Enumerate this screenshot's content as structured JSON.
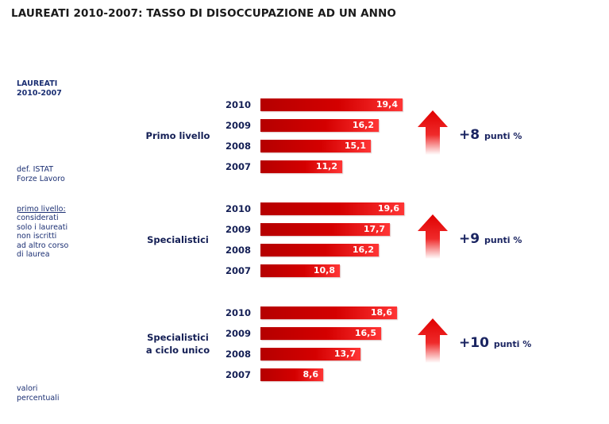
{
  "page": {
    "title": "LAUREATI 2010-2007: TASSO DI DISOCCUPAZIONE AD UN ANNO",
    "side_header": "LAUREATI\n2010-2007",
    "def_text": "def. ISTAT\nForze Lavoro",
    "primo_livello_label": "primo livello:",
    "primo_livello_desc": "considerati\nsolo i laureati\nnon iscritti\nad altro  corso\ndi laurea",
    "footnote": "valori\npercentuali"
  },
  "colors": {
    "bar": "#d40000",
    "arrow": "#e00000",
    "text_navy": "#141f55"
  },
  "chart_data": {
    "type": "bar",
    "orientation": "horizontal",
    "categories": [
      "2010",
      "2009",
      "2008",
      "2007"
    ],
    "groups": [
      {
        "label": "Primo livello",
        "values": [
          19.4,
          16.2,
          15.1,
          11.2
        ],
        "value_labels": [
          "19,4",
          "16,2",
          "15,1",
          "11,2"
        ],
        "delta_value": "+8",
        "delta_unit": "punti %"
      },
      {
        "label": "Specialistici",
        "values": [
          19.6,
          17.7,
          16.2,
          10.8
        ],
        "value_labels": [
          "19,6",
          "17,7",
          "16,2",
          "10,8"
        ],
        "delta_value": "+9",
        "delta_unit": "punti %"
      },
      {
        "label": "Specialistici\na ciclo unico",
        "values": [
          18.6,
          16.5,
          13.7,
          8.6
        ],
        "value_labels": [
          "18,6",
          "16,5",
          "13,7",
          "8,6"
        ],
        "delta_value": "+10",
        "delta_unit": "punti %"
      }
    ]
  }
}
